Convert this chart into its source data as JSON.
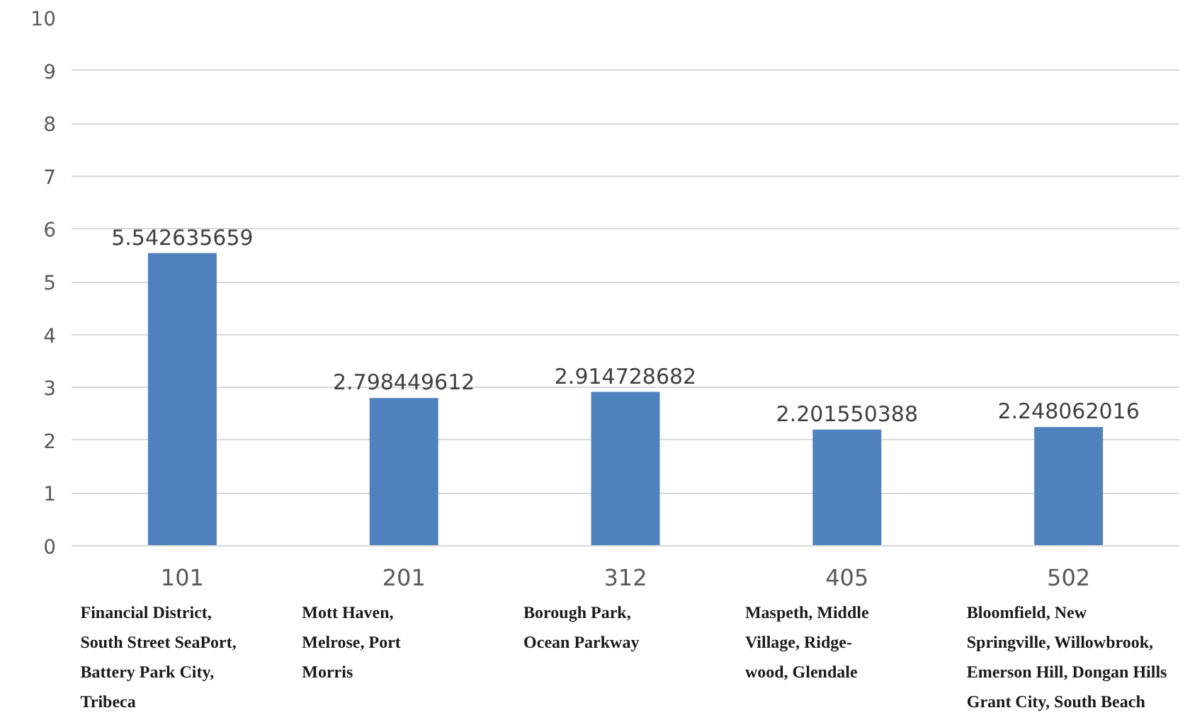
{
  "chart_data": {
    "type": "bar",
    "categories": [
      "101",
      "201",
      "312",
      "405",
      "502"
    ],
    "values": [
      5.542635659,
      2.798449612,
      2.914728682,
      2.201550388,
      2.248062016
    ],
    "color": "#4f81bd",
    "ylim": [
      0,
      10
    ],
    "yticks": [
      0,
      1,
      2,
      3,
      4,
      5,
      6,
      7,
      8,
      9,
      10
    ],
    "grid": "y",
    "data_labels": true,
    "annotations": [
      "Financial District,\nSouth Street SeaPort,\nBattery Park City,\nTribeca",
      "Mott Haven,\nMelrose, Port\nMorris",
      "Borough Park,\nOcean Parkway",
      "Maspeth, Middle\nVillage, Ridge-\nwood, Glendale",
      "Bloomfield, New\nSpringville, Willowbrook,\nEmerson Hill, Dongan Hills\nGrant City, South Beach"
    ]
  }
}
